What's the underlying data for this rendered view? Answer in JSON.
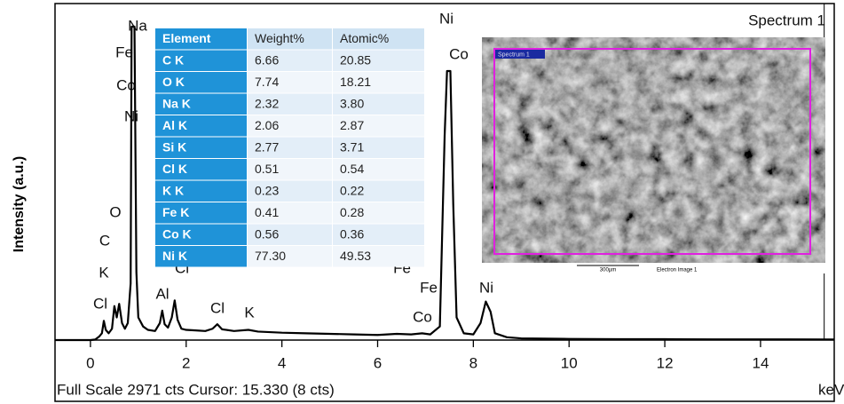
{
  "chart_data": {
    "type": "line",
    "y_label": "Intensity (a.u.)",
    "x_unit": "keV",
    "corner_title": "Spectrum 1",
    "footer": "Full Scale 2971 cts Cursor: 15.330 (8 cts)",
    "cursor": 15.33,
    "color": "#000000",
    "xlim": [
      -0.74,
      15.54
    ],
    "ylim": [
      0,
      2971
    ],
    "xticks": [
      0,
      2,
      4,
      6,
      8,
      10,
      12,
      14
    ],
    "x": [
      -0.74,
      0.0,
      0.1,
      0.18,
      0.24,
      0.28,
      0.32,
      0.38,
      0.45,
      0.5,
      0.55,
      0.6,
      0.66,
      0.72,
      0.78,
      0.84,
      0.86,
      0.92,
      0.96,
      1.0,
      1.1,
      1.2,
      1.35,
      1.45,
      1.5,
      1.55,
      1.62,
      1.7,
      1.76,
      1.82,
      1.9,
      2.0,
      2.2,
      2.4,
      2.55,
      2.65,
      2.75,
      3.0,
      3.3,
      3.5,
      4.0,
      4.5,
      5.0,
      5.5,
      6.0,
      6.4,
      6.7,
      6.93,
      7.1,
      7.3,
      7.4,
      7.45,
      7.52,
      7.58,
      7.65,
      7.8,
      8.0,
      8.15,
      8.26,
      8.36,
      8.45,
      8.7,
      9.0,
      10,
      11,
      12,
      13,
      14,
      15.54
    ],
    "values": [
      0,
      0,
      5,
      30,
      60,
      170,
      90,
      60,
      100,
      300,
      200,
      320,
      150,
      100,
      150,
      500,
      2767,
      2767,
      600,
      200,
      120,
      90,
      80,
      150,
      260,
      140,
      110,
      200,
      350,
      180,
      100,
      90,
      85,
      80,
      100,
      140,
      95,
      80,
      90,
      75,
      65,
      60,
      55,
      50,
      45,
      55,
      50,
      60,
      50,
      120,
      1800,
      2375,
      2375,
      1200,
      200,
      60,
      50,
      150,
      340,
      250,
      60,
      25,
      15,
      10,
      8,
      8,
      6,
      6,
      5
    ],
    "peak_labels": [
      "Na",
      "Fe",
      "Co",
      "Ni",
      "O",
      "C",
      "K",
      "Cl",
      "Al",
      "Cl",
      "Cl",
      "K",
      "Ni",
      "Co",
      "Fe",
      "Fe",
      "Co",
      "Ni"
    ]
  },
  "table": {
    "header": [
      "Element",
      "Weight%",
      "Atomic%"
    ],
    "rows": [
      [
        "C K",
        "6.66",
        "20.85"
      ],
      [
        "O K",
        "7.74",
        "18.21"
      ],
      [
        "Na K",
        "2.32",
        "3.80"
      ],
      [
        "Al K",
        "2.06",
        "2.87"
      ],
      [
        "Si K",
        "2.77",
        "3.71"
      ],
      [
        "Cl K",
        "0.51",
        "0.54"
      ],
      [
        "K K",
        "0.23",
        "0.22"
      ],
      [
        "Fe K",
        "0.41",
        "0.28"
      ],
      [
        "Co K",
        "0.56",
        "0.36"
      ],
      [
        "Ni K",
        "77.30",
        "49.53"
      ]
    ]
  },
  "inset_image": {
    "region_label": "Spectrum 1",
    "scale_label": "300µm",
    "caption": "Electron Image 1"
  }
}
